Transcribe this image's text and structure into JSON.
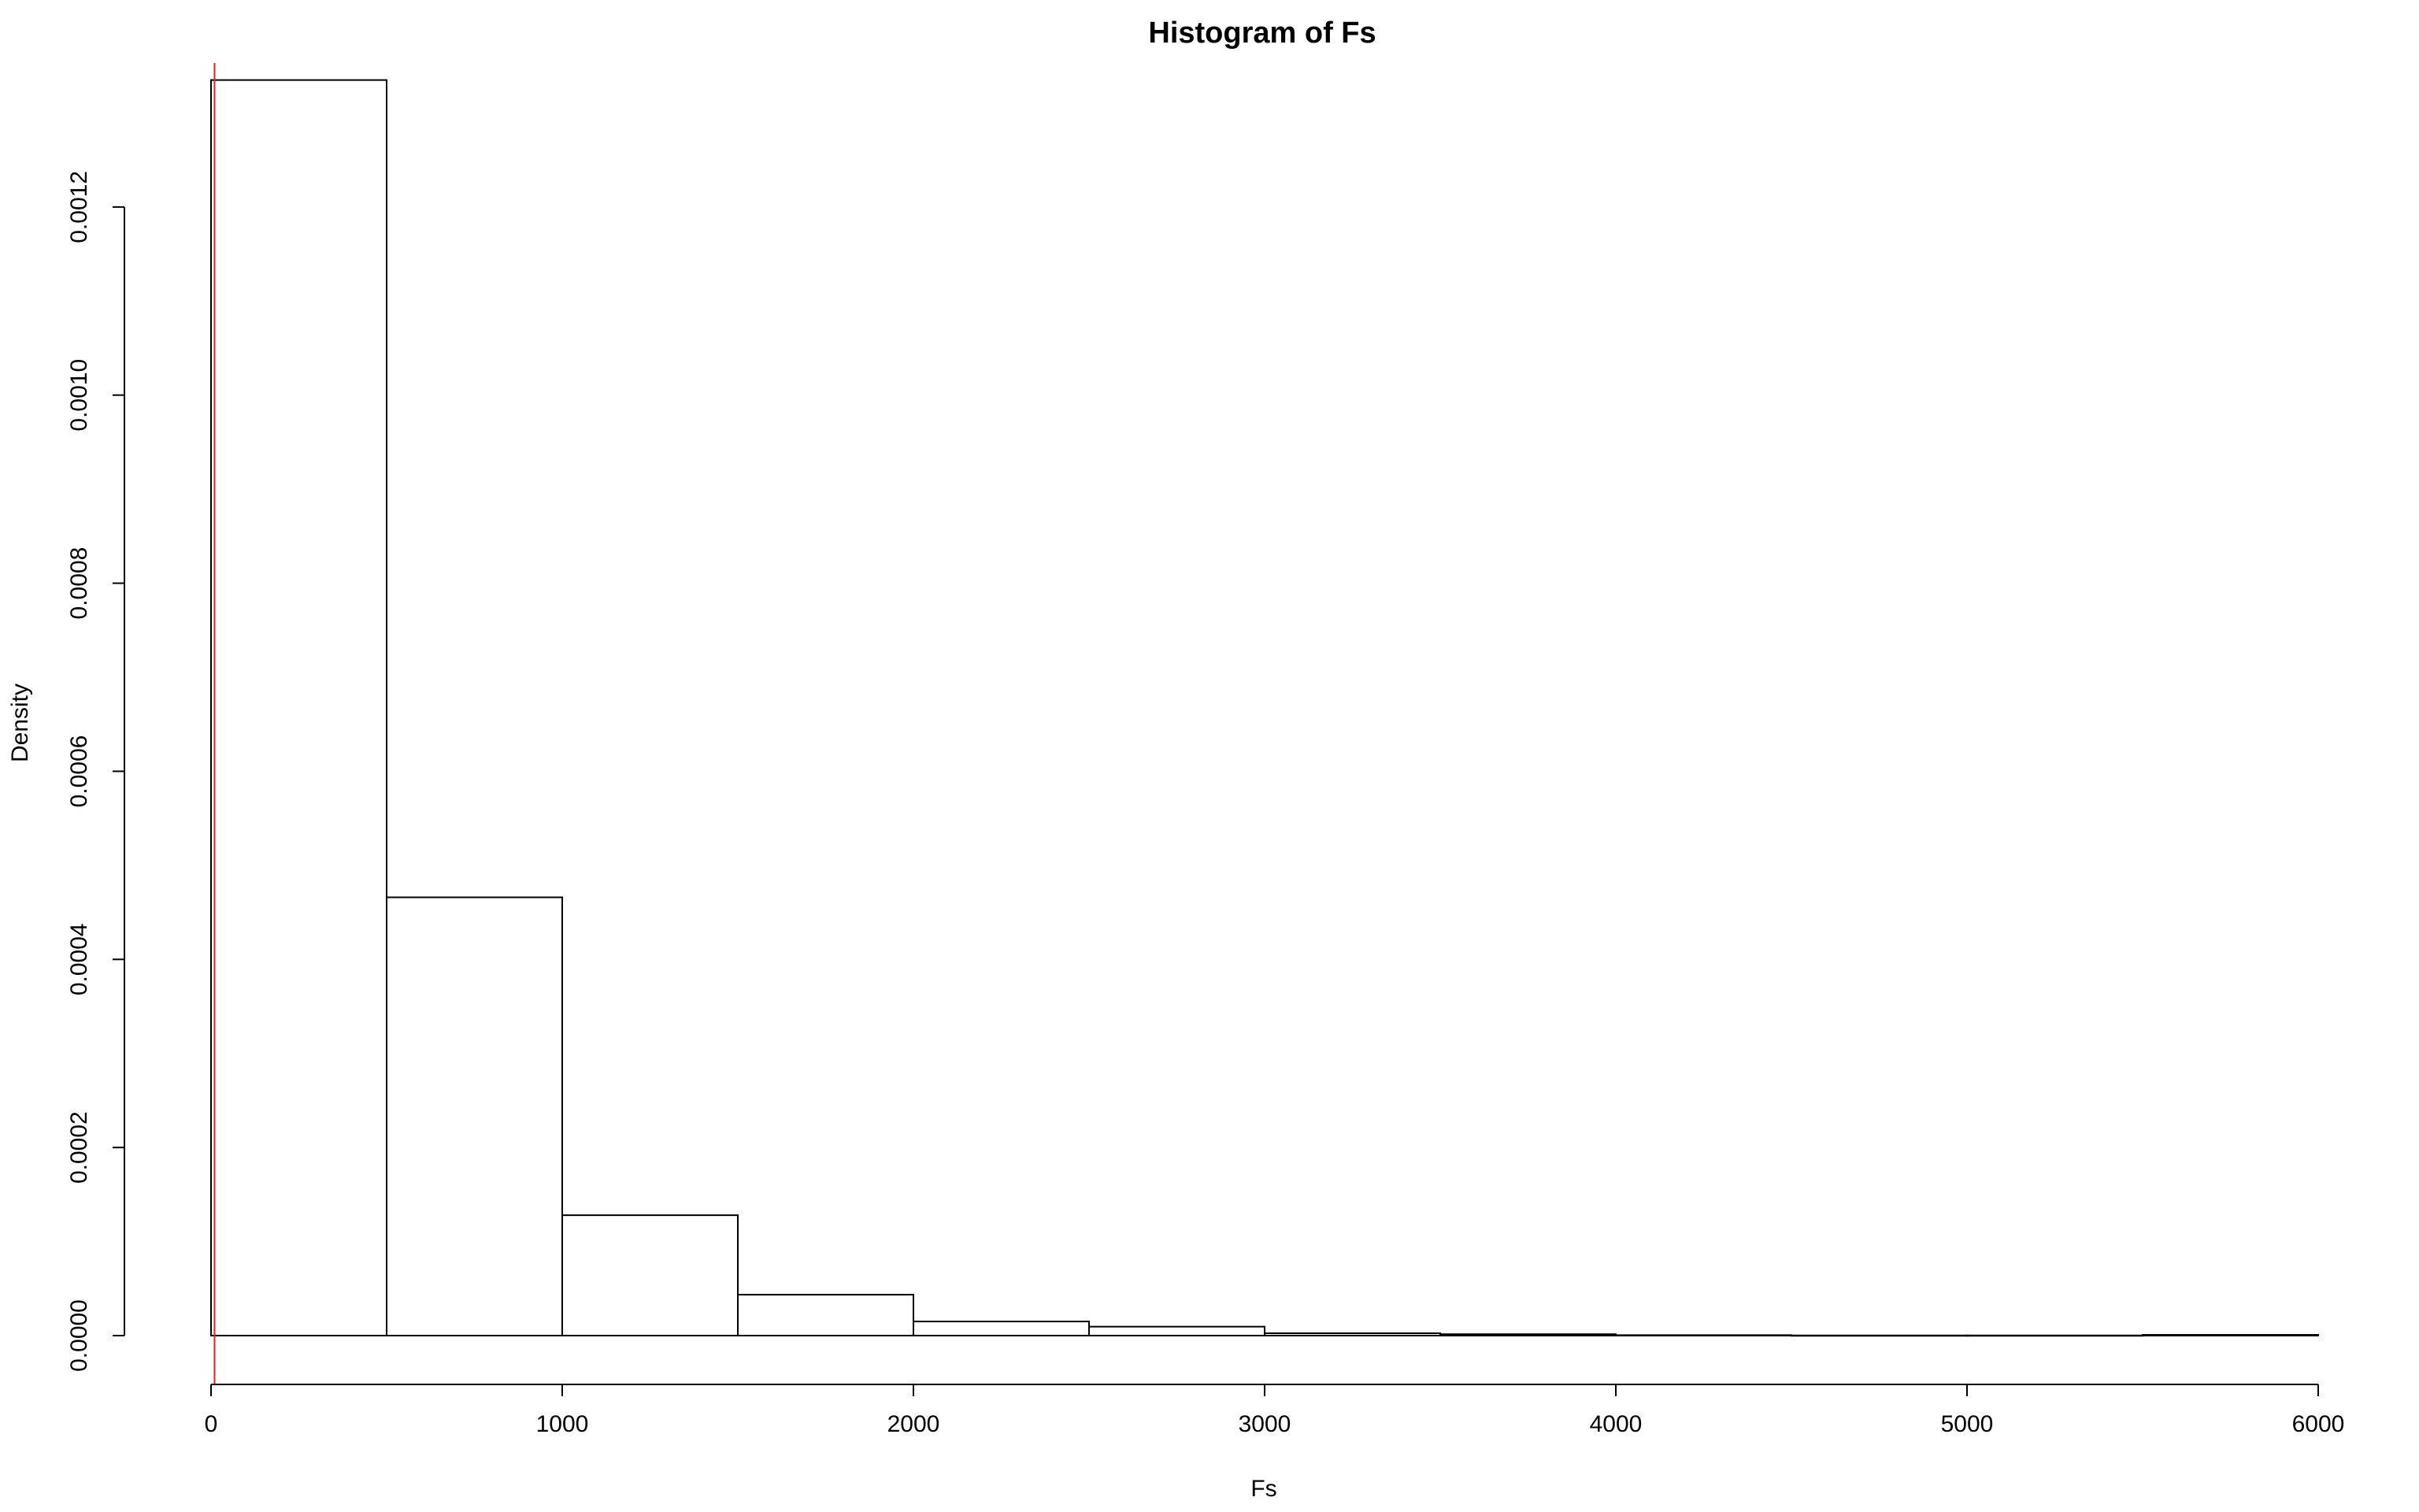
{
  "chart_data": {
    "type": "bar",
    "title": "Histogram of Fs",
    "xlabel": "Fs",
    "ylabel": "Density",
    "bin_edges": [
      0,
      500,
      1000,
      1500,
      2000,
      2500,
      3000,
      3500,
      4000,
      4500,
      5000,
      5500,
      6000
    ],
    "values": [
      0.001335,
      0.000466,
      0.000128,
      4.35e-05,
      1.5e-05,
      9.5e-06,
      2.5e-06,
      1.5e-06,
      5e-07,
      2e-07,
      2e-07,
      8e-07
    ],
    "xlim": [
      0,
      6000
    ],
    "ylim": [
      0,
      0.0014
    ],
    "xticks": [
      "0",
      "1000",
      "2000",
      "3000",
      "4000",
      "5000",
      "6000"
    ],
    "xtick_values": [
      0,
      1000,
      2000,
      3000,
      4000,
      5000,
      6000
    ],
    "yticks": [
      "0.0000",
      "0.0002",
      "0.0004",
      "0.0006",
      "0.0008",
      "0.0010",
      "0.0012"
    ],
    "ytick_values": [
      0,
      0.0002,
      0.0004,
      0.0006,
      0.0008,
      0.001,
      0.0012
    ],
    "vline": {
      "x": 10,
      "color": "#e8202a"
    },
    "grid": false,
    "bar_fill": "#ffffff",
    "bar_stroke": "#000000"
  }
}
